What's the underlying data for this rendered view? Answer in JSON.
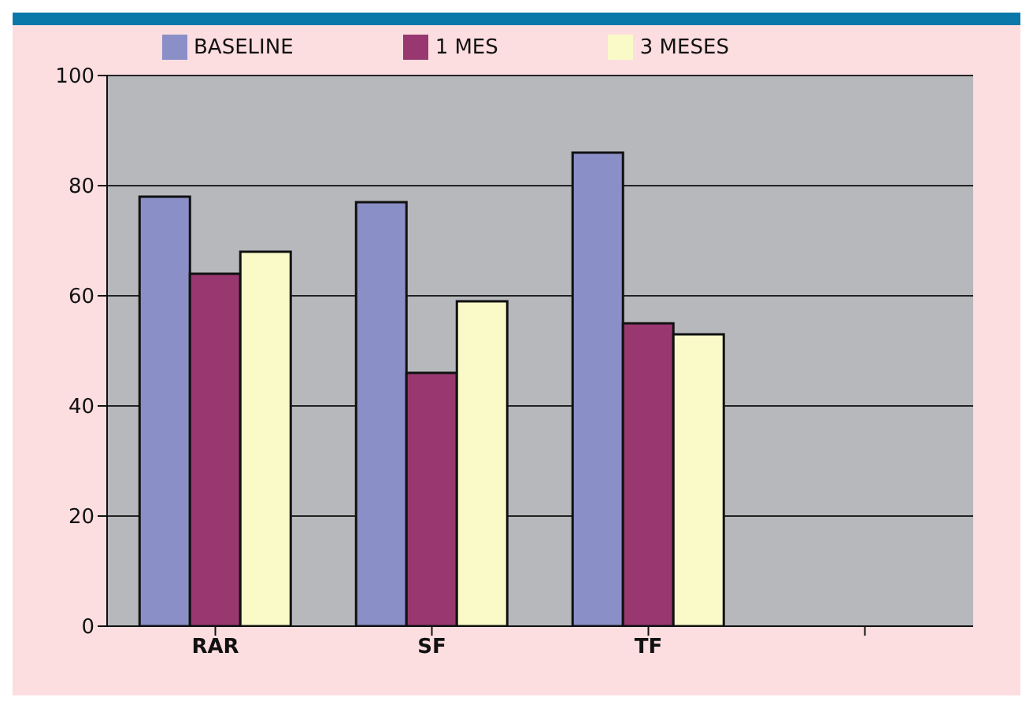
{
  "chart_data": {
    "type": "bar",
    "categories": [
      "RAR",
      "SF",
      "TF",
      null
    ],
    "series": [
      {
        "name": "BASELINE",
        "color": "#8b8fc7",
        "values": [
          78,
          77,
          86,
          null
        ]
      },
      {
        "name": "1 MES",
        "color": "#993870",
        "values": [
          64,
          46,
          55,
          null
        ]
      },
      {
        "name": "3 MESES",
        "color": "#fafac8",
        "values": [
          68,
          59,
          53,
          null
        ]
      }
    ],
    "ylim": [
      0,
      100
    ],
    "yticks": [
      0,
      20,
      40,
      60,
      80,
      100
    ],
    "grid": "y",
    "legend": "top"
  }
}
